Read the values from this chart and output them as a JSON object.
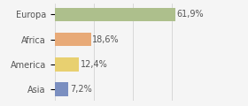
{
  "categories": [
    "Europa",
    "Africa",
    "America",
    "Asia"
  ],
  "values": [
    61.9,
    18.6,
    12.4,
    7.2
  ],
  "labels": [
    "61,9%",
    "18,6%",
    "12,4%",
    "7,2%"
  ],
  "bar_colors": [
    "#adbf8c",
    "#e8aa78",
    "#e8d070",
    "#7b8fc0"
  ],
  "background_color": "#f5f5f5",
  "xlim": [
    0,
    80
  ],
  "label_fontsize": 7,
  "tick_fontsize": 7,
  "gridline_color": "#cccccc",
  "gridline_positions": [
    0,
    20,
    40,
    60,
    80
  ],
  "text_color": "#555555"
}
